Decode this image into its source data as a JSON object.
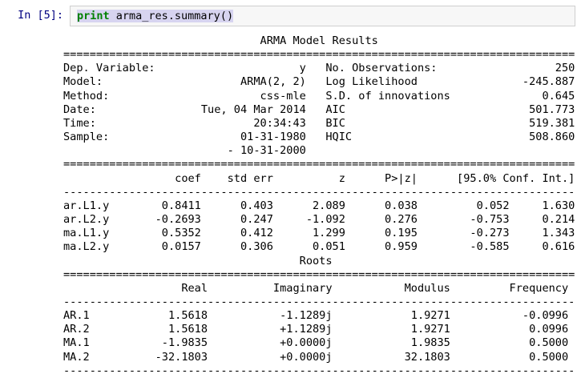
{
  "notebook": {
    "prompt": "In [5]:",
    "code": {
      "keyword": "print",
      "rest": " arma_res.summary()"
    }
  },
  "summary": {
    "title": "ARMA Model Results",
    "info_left": [
      {
        "label": "Dep. Variable:",
        "value": "y"
      },
      {
        "label": "Model:",
        "value": "ARMA(2, 2)"
      },
      {
        "label": "Method:",
        "value": "css-mle"
      },
      {
        "label": "Date:",
        "value": "Tue, 04 Mar 2014"
      },
      {
        "label": "Time:",
        "value": "20:34:43"
      },
      {
        "label": "Sample:",
        "value": "01-31-1980"
      },
      {
        "label": "",
        "value": "- 10-31-2000"
      }
    ],
    "info_right": [
      {
        "label": "No. Observations:",
        "value": "250"
      },
      {
        "label": "Log Likelihood",
        "value": "-245.887"
      },
      {
        "label": "S.D. of innovations",
        "value": "0.645"
      },
      {
        "label": "AIC",
        "value": "501.773"
      },
      {
        "label": "BIC",
        "value": "519.381"
      },
      {
        "label": "HQIC",
        "value": "508.860"
      }
    ],
    "coef_table": {
      "headers": [
        "coef",
        "std err",
        "z",
        "P>|z|",
        "[95.0% Conf. Int.]"
      ],
      "rows": [
        [
          "ar.L1.y",
          "0.8411",
          "0.403",
          "2.089",
          "0.038",
          "0.052",
          "1.630"
        ],
        [
          "ar.L2.y",
          "-0.2693",
          "0.247",
          "-1.092",
          "0.276",
          "-0.753",
          "0.214"
        ],
        [
          "ma.L1.y",
          "0.5352",
          "0.412",
          "1.299",
          "0.195",
          "-0.273",
          "1.343"
        ],
        [
          "ma.L2.y",
          "0.0157",
          "0.306",
          "0.051",
          "0.959",
          "-0.585",
          "0.616"
        ]
      ]
    },
    "roots_title": "Roots",
    "roots_table": {
      "headers": [
        "Real",
        "Imaginary",
        "Modulus",
        "Frequency"
      ],
      "rows": [
        [
          "AR.1",
          "1.5618",
          "-1.1289j",
          "1.9271",
          "-0.0996"
        ],
        [
          "AR.2",
          "1.5618",
          "+1.1289j",
          "1.9271",
          "0.0996"
        ],
        [
          "MA.1",
          "-1.9835",
          "+0.0000j",
          "1.9835",
          "0.5000"
        ],
        [
          "MA.2",
          "-32.1803",
          "+0.0000j",
          "32.1803",
          "0.5000"
        ]
      ]
    }
  },
  "colors": {
    "prompt_navy": "#000080",
    "keyword_green": "#008000",
    "selection_lavender": "#d7d4f0",
    "input_border": "#cfcfcf",
    "input_bg": "#f7f7f7",
    "text": "#000000"
  }
}
